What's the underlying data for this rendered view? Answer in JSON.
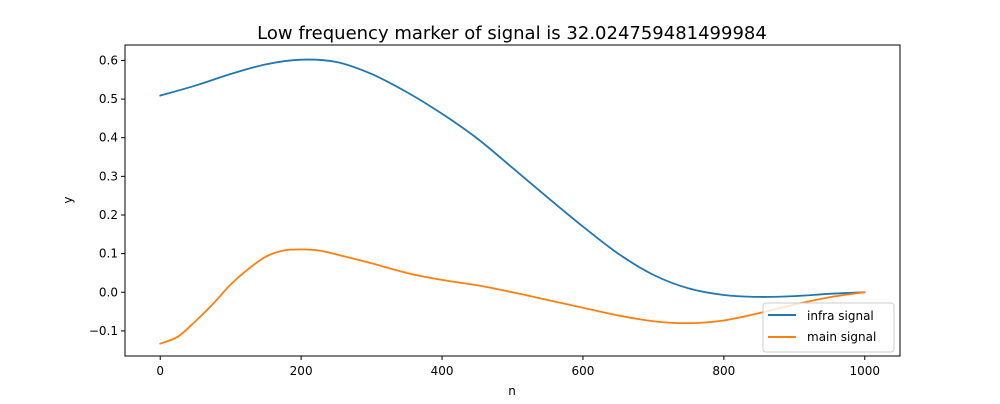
{
  "chart_data": {
    "type": "line",
    "title": "Low frequency marker of signal is 32.024759481499984",
    "xlabel": "n",
    "ylabel": "y",
    "xlim": [
      -50,
      1050
    ],
    "ylim": [
      -0.165,
      0.64
    ],
    "xticks": [
      0,
      200,
      400,
      600,
      800,
      1000
    ],
    "xtick_labels": [
      "0",
      "200",
      "400",
      "600",
      "800",
      "1000"
    ],
    "yticks": [
      -0.1,
      0.0,
      0.1,
      0.2,
      0.3,
      0.4,
      0.5,
      0.6
    ],
    "ytick_labels": [
      "−0.1",
      "0.0",
      "0.1",
      "0.2",
      "0.3",
      "0.4",
      "0.5",
      "0.6"
    ],
    "grid": false,
    "legend_position": "lower-right",
    "series": [
      {
        "name": "infra signal",
        "color": "#1f77b4",
        "x": [
          0,
          50,
          100,
          150,
          200,
          250,
          300,
          350,
          400,
          450,
          500,
          550,
          600,
          650,
          700,
          750,
          800,
          850,
          900,
          950,
          1000
        ],
        "y": [
          0.509,
          0.535,
          0.565,
          0.59,
          0.602,
          0.596,
          0.565,
          0.518,
          0.462,
          0.398,
          0.322,
          0.245,
          0.17,
          0.1,
          0.045,
          0.01,
          -0.007,
          -0.012,
          -0.01,
          -0.004,
          0.0
        ]
      },
      {
        "name": "main signal",
        "color": "#ff7f0e",
        "x": [
          0,
          25,
          50,
          75,
          100,
          125,
          150,
          175,
          200,
          225,
          250,
          300,
          350,
          400,
          450,
          500,
          550,
          600,
          650,
          700,
          750,
          800,
          850,
          900,
          950,
          1000
        ],
        "y": [
          -0.133,
          -0.115,
          -0.075,
          -0.03,
          0.02,
          0.06,
          0.092,
          0.108,
          0.111,
          0.108,
          0.098,
          0.075,
          0.05,
          0.032,
          0.018,
          0.0,
          -0.02,
          -0.04,
          -0.06,
          -0.075,
          -0.08,
          -0.073,
          -0.054,
          -0.032,
          -0.013,
          0.0
        ]
      }
    ]
  }
}
